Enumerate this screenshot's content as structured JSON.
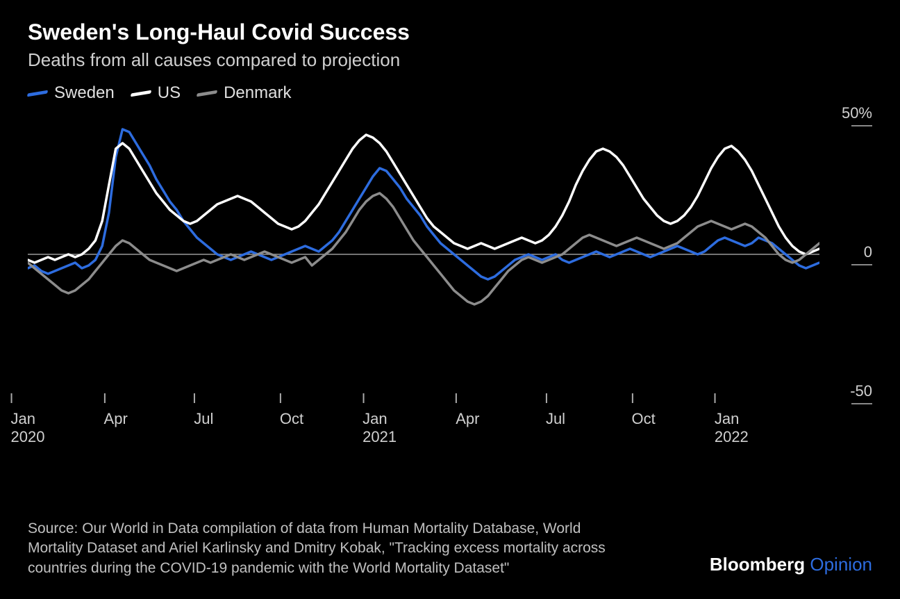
{
  "title": "Sweden's Long-Haul Covid Success",
  "subtitle": "Deaths from all causes compared to projection",
  "legend": [
    {
      "label": "Sweden",
      "color": "#2d6cdf"
    },
    {
      "label": "US",
      "color": "#ffffff"
    },
    {
      "label": "Denmark",
      "color": "#8c8c8c"
    }
  ],
  "source": "Source: Our World in Data compilation of data from Human Mortality Database, World Mortality Dataset and Ariel Karlinsky and Dmitry Kobak, \"Tracking excess mortality across countries during the COVID-19 pandemic with the World Mortality Dataset\"",
  "branding": {
    "main": "Bloomberg",
    "accent": "Opinion",
    "accent_color": "#2d6cdf"
  },
  "chart": {
    "type": "line",
    "background_color": "#000000",
    "zero_line_color": "#9a9a9a",
    "line_width": 3.5,
    "ylim": [
      -50,
      50
    ],
    "y_ticks": [
      {
        "value": 50,
        "label": "50%"
      },
      {
        "value": 0,
        "label": "0"
      },
      {
        "value": -50,
        "label": "-50"
      }
    ],
    "x_axis": {
      "domain_weeks": 118,
      "ticks": [
        {
          "week": 0,
          "label": "Jan",
          "year": "2020"
        },
        {
          "week": 13,
          "label": "Apr",
          "year": ""
        },
        {
          "week": 26,
          "label": "Jul",
          "year": ""
        },
        {
          "week": 39,
          "label": "Oct",
          "year": ""
        },
        {
          "week": 52,
          "label": "Jan",
          "year": "2021"
        },
        {
          "week": 65,
          "label": "Apr",
          "year": ""
        },
        {
          "week": 78,
          "label": "Jul",
          "year": ""
        },
        {
          "week": 91,
          "label": "Oct",
          "year": ""
        },
        {
          "week": 104,
          "label": "Jan",
          "year": "2022"
        }
      ]
    },
    "series": [
      {
        "name": "Sweden",
        "color": "#2d6cdf",
        "values": [
          -5,
          -4,
          -6,
          -7,
          -6,
          -5,
          -4,
          -3,
          -5,
          -4,
          -2,
          3,
          15,
          35,
          45,
          44,
          40,
          36,
          32,
          27,
          23,
          19,
          16,
          12,
          9,
          6,
          4,
          2,
          0,
          -1,
          -2,
          -1,
          0,
          1,
          0,
          -1,
          -2,
          -1,
          0,
          1,
          2,
          3,
          2,
          1,
          3,
          5,
          8,
          12,
          16,
          20,
          24,
          28,
          31,
          30,
          27,
          24,
          20,
          17,
          14,
          10,
          7,
          4,
          2,
          0,
          -2,
          -4,
          -6,
          -8,
          -9,
          -8,
          -6,
          -4,
          -2,
          -1,
          0,
          -1,
          -2,
          -1,
          0,
          -2,
          -3,
          -2,
          -1,
          0,
          1,
          0,
          -1,
          0,
          1,
          2,
          1,
          0,
          -1,
          0,
          1,
          2,
          3,
          2,
          1,
          0,
          1,
          3,
          5,
          6,
          5,
          4,
          3,
          4,
          6,
          5,
          4,
          2,
          0,
          -2,
          -4,
          -5,
          -4,
          -3
        ]
      },
      {
        "name": "US",
        "color": "#ffffff",
        "values": [
          -2,
          -3,
          -2,
          -1,
          -2,
          -1,
          0,
          -1,
          0,
          2,
          5,
          12,
          25,
          38,
          40,
          38,
          34,
          30,
          26,
          22,
          19,
          16,
          14,
          12,
          11,
          12,
          14,
          16,
          18,
          19,
          20,
          21,
          20,
          19,
          17,
          15,
          13,
          11,
          10,
          9,
          10,
          12,
          15,
          18,
          22,
          26,
          30,
          34,
          38,
          41,
          43,
          42,
          40,
          37,
          33,
          29,
          25,
          21,
          17,
          13,
          10,
          8,
          6,
          4,
          3,
          2,
          3,
          4,
          3,
          2,
          3,
          4,
          5,
          6,
          5,
          4,
          5,
          7,
          10,
          14,
          19,
          25,
          30,
          34,
          37,
          38,
          37,
          35,
          32,
          28,
          24,
          20,
          17,
          14,
          12,
          11,
          12,
          14,
          17,
          21,
          26,
          31,
          35,
          38,
          39,
          37,
          34,
          30,
          25,
          20,
          15,
          10,
          6,
          3,
          1,
          0,
          1,
          2
        ]
      },
      {
        "name": "Denmark",
        "color": "#8c8c8c",
        "values": [
          -3,
          -5,
          -7,
          -9,
          -11,
          -13,
          -14,
          -13,
          -11,
          -9,
          -6,
          -3,
          0,
          3,
          5,
          4,
          2,
          0,
          -2,
          -3,
          -4,
          -5,
          -6,
          -5,
          -4,
          -3,
          -2,
          -3,
          -2,
          -1,
          0,
          -1,
          -2,
          -1,
          0,
          1,
          0,
          -1,
          -2,
          -3,
          -2,
          -1,
          -4,
          -2,
          0,
          2,
          5,
          8,
          12,
          16,
          19,
          21,
          22,
          20,
          17,
          13,
          9,
          5,
          2,
          -1,
          -4,
          -7,
          -10,
          -13,
          -15,
          -17,
          -18,
          -17,
          -15,
          -12,
          -9,
          -6,
          -4,
          -2,
          -1,
          -2,
          -3,
          -2,
          -1,
          0,
          2,
          4,
          6,
          7,
          6,
          5,
          4,
          3,
          4,
          5,
          6,
          5,
          4,
          3,
          2,
          3,
          4,
          6,
          8,
          10,
          11,
          12,
          11,
          10,
          9,
          10,
          11,
          10,
          8,
          6,
          3,
          0,
          -2,
          -3,
          -2,
          0,
          2,
          4
        ]
      }
    ]
  }
}
